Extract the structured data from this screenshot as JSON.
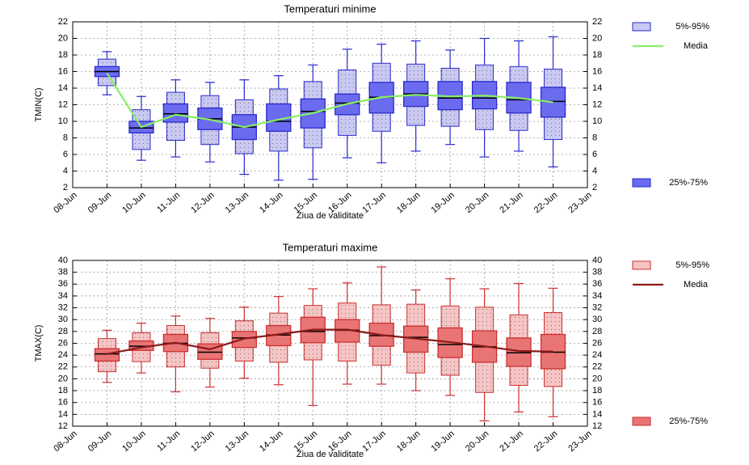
{
  "chart_data": [
    {
      "type": "box",
      "title": "Temperaturi minime",
      "title_color": "#1f1fd0",
      "xlabel": "Ziua de validitate",
      "ylabel": "TMIN(C)",
      "categories": [
        "08-Jun",
        "09-Jun",
        "10-Jun",
        "11-Jun",
        "12-Jun",
        "13-Jun",
        "14-Jun",
        "15-Jun",
        "16-Jun",
        "17-Jun",
        "18-Jun",
        "19-Jun",
        "20-Jun",
        "21-Jun",
        "22-Jun",
        "23-Jun"
      ],
      "ylim": [
        2,
        22
      ],
      "yticks": [
        2,
        4,
        6,
        8,
        10,
        12,
        14,
        16,
        18,
        20,
        22
      ],
      "grid": true,
      "series": [
        {
          "name": "5%-95%",
          "color": "#c8c8f2",
          "low": [
            null,
            14.3,
            6.6,
            7.7,
            7.2,
            6.1,
            6.4,
            6.8,
            8.3,
            8.8,
            9.5,
            9.4,
            9.0,
            8.9,
            7.8,
            null
          ],
          "high": [
            null,
            17.5,
            11.4,
            13.5,
            13.1,
            12.6,
            13.9,
            14.8,
            16.2,
            17.0,
            16.9,
            16.4,
            16.8,
            16.6,
            16.3,
            null
          ]
        },
        {
          "name": "25%-75%",
          "color": "#6b6bef",
          "low": [
            null,
            15.4,
            8.6,
            9.9,
            9.0,
            7.8,
            8.8,
            9.2,
            10.8,
            11.0,
            11.8,
            11.4,
            11.5,
            11.0,
            10.5,
            null
          ],
          "high": [
            null,
            16.6,
            10.0,
            12.1,
            11.6,
            10.8,
            12.1,
            12.7,
            13.3,
            14.7,
            14.8,
            14.8,
            14.8,
            14.7,
            14.1,
            null
          ]
        },
        {
          "name": "Media",
          "color": "#88ee66",
          "values": [
            null,
            15.8,
            9.3,
            10.8,
            10.2,
            9.3,
            10.2,
            11.0,
            12.1,
            12.9,
            13.2,
            13.0,
            13.1,
            12.8,
            12.3,
            null
          ]
        }
      ],
      "edge_color": "#2a2acc",
      "whiskers": {
        "low": [
          null,
          13.2,
          5.3,
          5.7,
          5.1,
          3.6,
          2.9,
          3.0,
          5.6,
          5.0,
          6.4,
          7.2,
          5.7,
          6.4,
          4.5,
          null
        ],
        "high": [
          null,
          18.4,
          13.0,
          15.0,
          14.7,
          15.0,
          15.5,
          16.8,
          18.7,
          19.3,
          19.7,
          18.6,
          20.0,
          19.7,
          20.2,
          null
        ]
      },
      "medians": [
        null,
        16.0,
        9.2,
        10.9,
        10.3,
        9.3,
        10.0,
        11.2,
        12.2,
        12.9,
        13.3,
        12.8,
        12.8,
        12.6,
        12.4,
        null
      ]
    },
    {
      "type": "box",
      "title": "Temperaturi maxime",
      "title_color": "#e02020",
      "xlabel": "Ziua de validitate",
      "ylabel": "TMAX(C)",
      "categories": [
        "08-Jun",
        "09-Jun",
        "10-Jun",
        "11-Jun",
        "12-Jun",
        "13-Jun",
        "14-Jun",
        "15-Jun",
        "16-Jun",
        "17-Jun",
        "18-Jun",
        "19-Jun",
        "20-Jun",
        "21-Jun",
        "22-Jun",
        "23-Jun"
      ],
      "ylim": [
        12,
        40
      ],
      "yticks": [
        12,
        14,
        16,
        18,
        20,
        22,
        24,
        26,
        28,
        30,
        32,
        34,
        36,
        38,
        40
      ],
      "grid": true,
      "series": [
        {
          "name": "5%-95%",
          "color": "#f6c4c4",
          "low": [
            null,
            21.2,
            22.9,
            22.0,
            21.8,
            23.0,
            22.8,
            23.2,
            23.0,
            22.3,
            21.0,
            20.6,
            17.7,
            18.9,
            18.7,
            null
          ],
          "high": [
            null,
            26.8,
            27.8,
            29.0,
            27.8,
            29.8,
            31.1,
            32.4,
            32.8,
            32.5,
            32.6,
            32.3,
            32.1,
            30.8,
            31.2,
            null
          ]
        },
        {
          "name": "25%-75%",
          "color": "#e87474",
          "low": [
            null,
            23.0,
            24.8,
            24.6,
            23.3,
            25.3,
            25.6,
            26.1,
            26.2,
            25.5,
            24.5,
            23.6,
            22.8,
            22.1,
            21.7,
            null
          ],
          "high": [
            null,
            25.1,
            26.4,
            27.5,
            25.9,
            28.0,
            29.0,
            30.4,
            30.0,
            29.4,
            28.9,
            28.6,
            28.1,
            26.9,
            27.5,
            null
          ]
        },
        {
          "name": "Media",
          "color": "#8b1a1a",
          "values": [
            null,
            24.2,
            25.3,
            26.1,
            25.0,
            26.8,
            27.5,
            28.3,
            28.3,
            27.4,
            26.8,
            26.2,
            25.5,
            24.7,
            24.6,
            null
          ]
        }
      ],
      "edge_color": "#cc3030",
      "whiskers": {
        "low": [
          null,
          19.4,
          21.0,
          17.8,
          18.6,
          20.1,
          19.0,
          15.5,
          19.1,
          19.1,
          18.0,
          17.2,
          12.9,
          14.4,
          13.6,
          null
        ],
        "high": [
          null,
          28.2,
          29.4,
          30.6,
          30.2,
          32.1,
          33.9,
          35.2,
          36.2,
          38.9,
          35.0,
          36.9,
          35.2,
          36.1,
          35.3,
          null
        ]
      },
      "medians": [
        null,
        24.2,
        25.5,
        26.0,
        24.5,
        26.9,
        27.4,
        28.0,
        28.2,
        27.3,
        27.0,
        25.8,
        25.4,
        24.4,
        24.5,
        null
      ]
    }
  ]
}
